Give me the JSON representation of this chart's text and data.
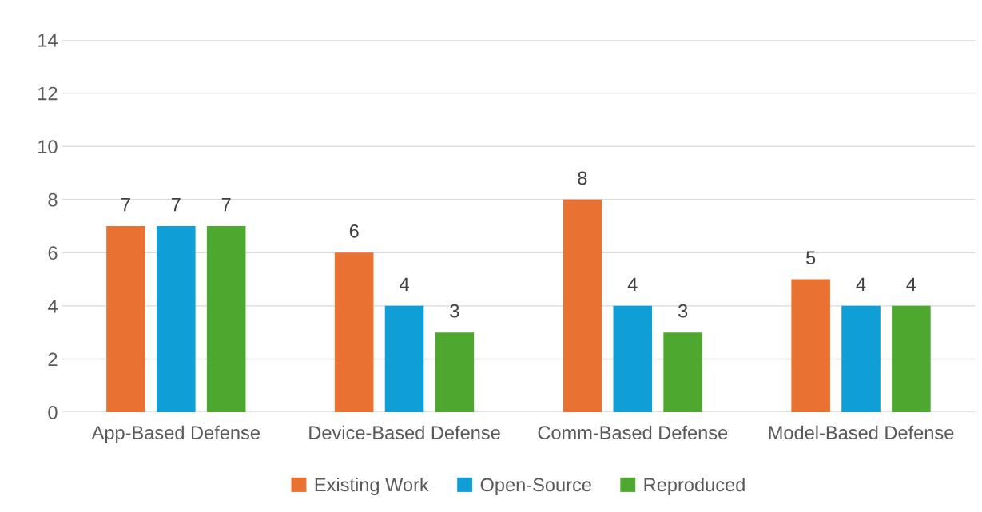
{
  "chart_data": {
    "type": "bar",
    "categories": [
      "App-Based Defense",
      "Device-Based Defense",
      "Comm-Based Defense",
      "Model-Based Defense"
    ],
    "series": [
      {
        "name": "Existing Work",
        "color": "#e97132",
        "values": [
          7,
          6,
          8,
          5
        ]
      },
      {
        "name": "Open-Source",
        "color": "#0f9ed5",
        "values": [
          7,
          4,
          4,
          4
        ]
      },
      {
        "name": "Reproduced",
        "color": "#4ea72e",
        "values": [
          7,
          3,
          3,
          4
        ]
      }
    ],
    "ylim": [
      0,
      14
    ],
    "yticks": [
      0,
      2,
      4,
      6,
      8,
      10,
      12,
      14
    ],
    "grid": "y",
    "legend": "bottom",
    "data_labels": true
  }
}
